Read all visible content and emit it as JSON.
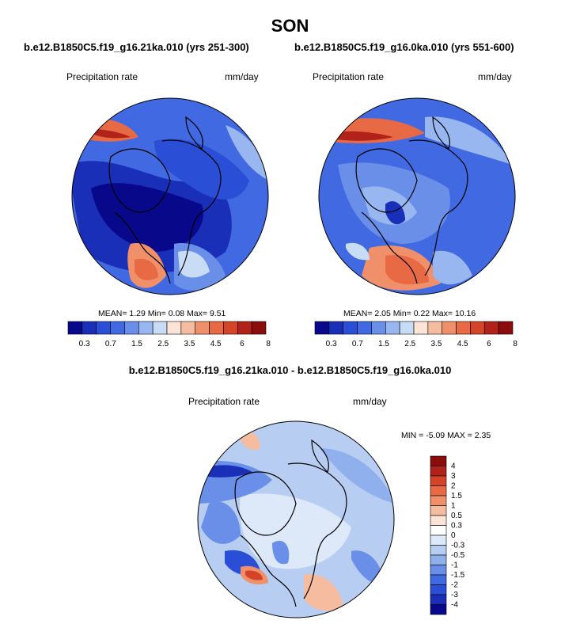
{
  "title": "SON",
  "panels": [
    {
      "case": "b.e12.B1850C5.f19_g16.21ka.010 (yrs 251-300)",
      "variable": "Precipitation rate",
      "units": "mm/day",
      "stats": "MEAN=   1.29  Min=   0.08  Max=   9.51"
    },
    {
      "case": "b.e12.B1850C5.f19_g16.0ka.010 (yrs 551-600)",
      "variable": "Precipitation rate",
      "units": "mm/day",
      "stats": "MEAN=   2.05  Min=   0.22  Max=  10.16"
    }
  ],
  "difference": {
    "title": "b.e12.B1850C5.f19_g16.21ka.010 - b.e12.B1850C5.f19_g16.0ka.010",
    "variable": "Precipitation rate",
    "units": "mm/day",
    "stats": "MIN =  -5.09 MAX =   2.35"
  },
  "colorbar_abs": {
    "labels": [
      "0.3",
      "0.7",
      "1.5",
      "2.5",
      "3.5",
      "4.5",
      "6",
      "8"
    ],
    "colors": [
      "#08088a",
      "#1a2fb8",
      "#2a4ed6",
      "#4169e1",
      "#6a8fe8",
      "#98b6f0",
      "#c8dcf6",
      "#fbe3d6",
      "#f6bca0",
      "#f0906a",
      "#e86a45",
      "#d44428",
      "#b0221a",
      "#8a0c0c"
    ]
  },
  "colorbar_diff": {
    "labels": [
      "4",
      "3",
      "2",
      "1.5",
      "1",
      "0.5",
      "0.3",
      "0",
      "-0.3",
      "-0.5",
      "-1",
      "-1.5",
      "-2",
      "-3",
      "-4"
    ],
    "colors": [
      "#8a0c0c",
      "#b0221a",
      "#d44428",
      "#e86a45",
      "#f0906a",
      "#f6bca0",
      "#fbe3d6",
      "#ffffff",
      "#dde8f8",
      "#b8cdf2",
      "#8fb0ec",
      "#6a8fe8",
      "#4169e1",
      "#2a4ed6",
      "#1a2fb8",
      "#08088a"
    ]
  }
}
